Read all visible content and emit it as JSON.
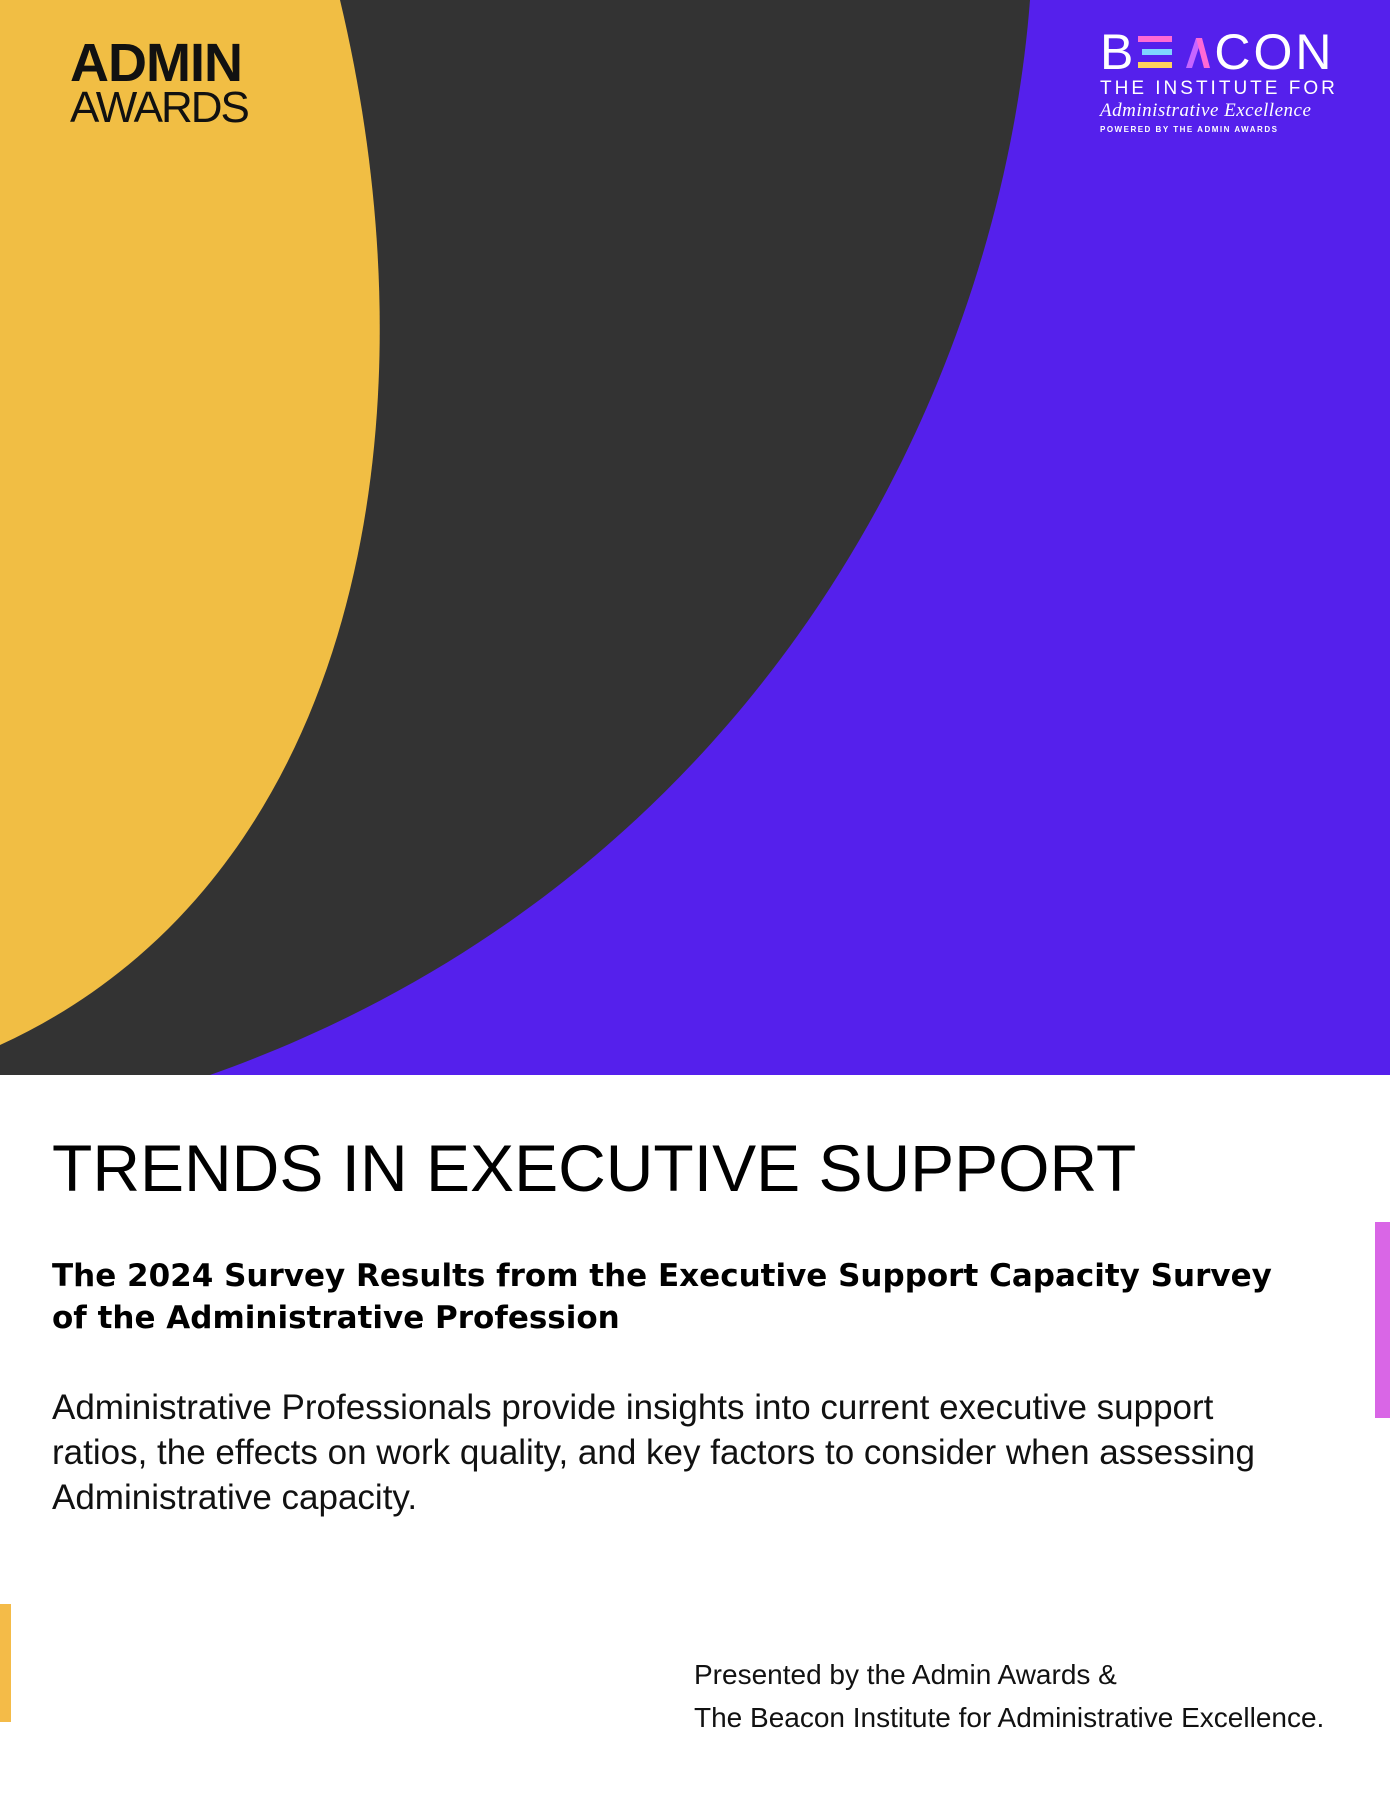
{
  "colors": {
    "yellow": "#f1be44",
    "charcoal": "#333333",
    "purple": "#5520ec",
    "accent_pink": "#d966e6",
    "accent_yellow": "#f4bb48"
  },
  "logos": {
    "admin_awards": {
      "line1": "ADMIN",
      "line2": "AWARDS"
    },
    "beacon": {
      "letters_left": "B",
      "letters_right": "CON",
      "line1": "THE INSTITUTE FOR",
      "line2": "Administrative Excellence",
      "line3": "POWERED BY THE ADMIN AWARDS"
    }
  },
  "title": "TRENDS IN EXECUTIVE SUPPORT",
  "subtitle": "The 2024 Survey Results from the Executive Support Capacity Survey of the Administrative Profession",
  "description": "Administrative Professionals provide insights into current executive support ratios, the effects on work quality, and key factors to consider when assessing Administrative capacity.",
  "presented_by": {
    "line1": "Presented by the Admin Awards &",
    "line2": "The Beacon Institute for Administrative Excellence."
  }
}
